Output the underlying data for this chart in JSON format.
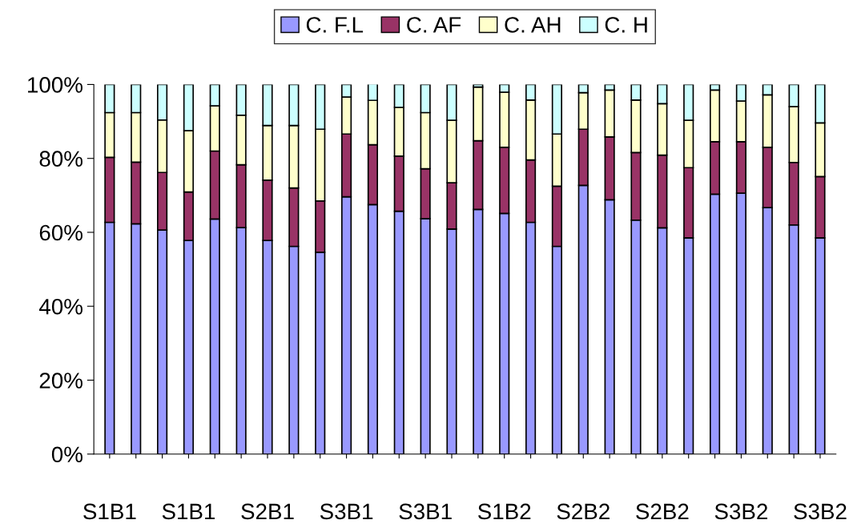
{
  "chart_data": {
    "type": "bar",
    "stacked": true,
    "legend": "top",
    "categories": [
      "S1B1",
      null,
      null,
      "S1B1",
      null,
      null,
      "S2B1",
      null,
      null,
      "S3B1",
      null,
      null,
      "S3B1",
      null,
      null,
      "S1B2",
      null,
      null,
      "S2B2",
      null,
      null,
      "S2B2",
      null,
      null,
      "S3B2",
      null,
      null,
      "S3B2"
    ],
    "series": [
      {
        "name": "C. F.L",
        "color": "#9999ff",
        "values": [
          62.7,
          62.3,
          60.6,
          57.8,
          63.6,
          61.3,
          57.8,
          56.2,
          54.6,
          69.6,
          67.5,
          65.7,
          63.7,
          60.9,
          66.2,
          65.1,
          62.7,
          56.2,
          72.7,
          68.8,
          63.3,
          61.2,
          58.5,
          70.3,
          70.6,
          66.7,
          62.0,
          58.5
        ]
      },
      {
        "name": "C. AF",
        "color": "#993366",
        "values": [
          17.6,
          16.7,
          15.6,
          13.1,
          18.4,
          17.0,
          16.3,
          15.8,
          13.9,
          17.0,
          16.2,
          14.9,
          13.5,
          12.5,
          18.6,
          17.9,
          16.9,
          16.3,
          15.2,
          17.0,
          18.3,
          19.7,
          19.0,
          14.2,
          13.9,
          16.3,
          16.9,
          16.6
        ]
      },
      {
        "name": "C. AH",
        "color": "#ffffcc",
        "values": [
          12.1,
          13.4,
          14.2,
          16.6,
          12.2,
          13.4,
          14.8,
          16.9,
          19.4,
          10.0,
          12.0,
          13.2,
          15.2,
          16.9,
          14.5,
          14.9,
          16.2,
          14.1,
          9.9,
          12.7,
          14.2,
          13.9,
          12.8,
          14.0,
          11.0,
          14.2,
          15.1,
          14.5
        ]
      },
      {
        "name": "C. H",
        "color": "#ccffff",
        "values": [
          7.6,
          7.6,
          9.6,
          12.5,
          5.8,
          8.3,
          11.1,
          11.1,
          12.1,
          3.4,
          4.5,
          6.2,
          7.6,
          9.7,
          0.7,
          2.1,
          4.2,
          13.4,
          2.2,
          1.5,
          4.2,
          5.2,
          9.7,
          1.5,
          4.5,
          2.8,
          6.0,
          10.4
        ]
      }
    ],
    "ylim": [
      0,
      100
    ],
    "yticks": [
      {
        "value": 0,
        "label": "0%"
      },
      {
        "value": 20,
        "label": "20%"
      },
      {
        "value": 40,
        "label": "40%"
      },
      {
        "value": 60,
        "label": "60%"
      },
      {
        "value": 80,
        "label": "80%"
      },
      {
        "value": 100,
        "label": "100%"
      }
    ]
  }
}
